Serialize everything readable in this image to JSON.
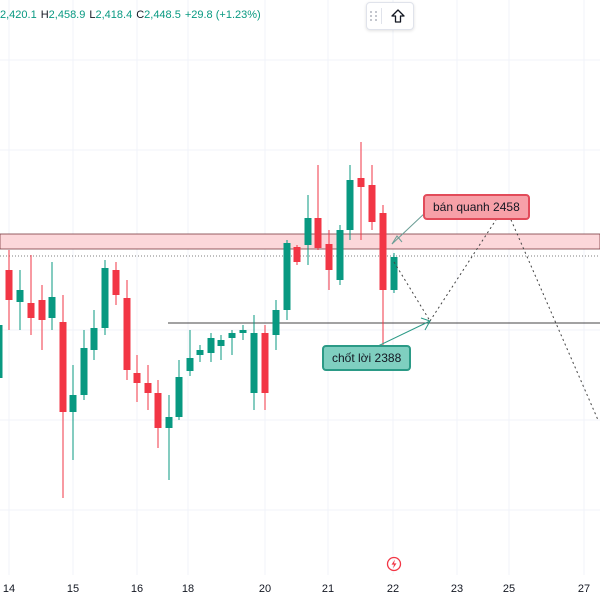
{
  "ohlc": {
    "open_value": "2,420.1",
    "high_label": "H",
    "high_value": "2,458.9",
    "low_label": "L",
    "low_value": "2,418.4",
    "close_label": "C",
    "close_value": "2,448.5",
    "change": "+29.8 (+1.23%)"
  },
  "annotations": {
    "sell": "bán quanh 2458",
    "take_profit": "chốt lời 2388"
  },
  "x_axis": {
    "labels": [
      "14",
      "15",
      "16",
      "18",
      "20",
      "21",
      "22",
      "23",
      "25",
      "27"
    ]
  },
  "colors": {
    "bull": "#089981",
    "bear": "#f23645",
    "zone_fill": "#fcd7da",
    "zone_border": "#7a3a3f"
  },
  "icons": {
    "toolbar_drag": "drag-handle-icon",
    "toolbar_action": "arrow-up-icon",
    "replay": "replay-lightning-icon"
  }
}
